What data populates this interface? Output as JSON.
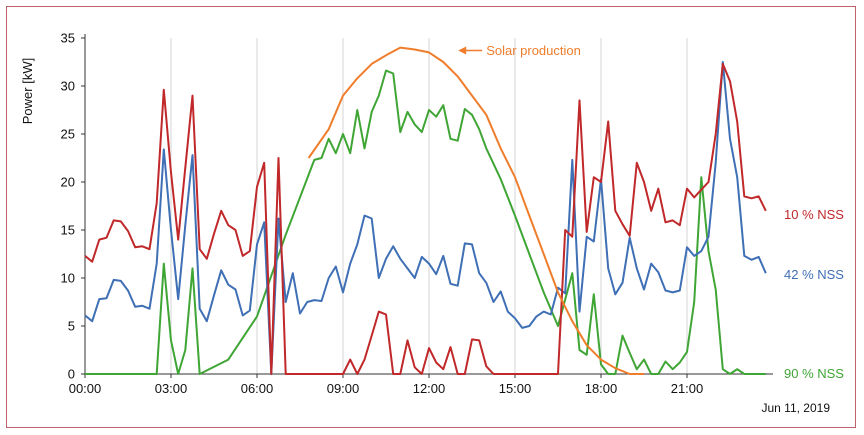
{
  "chart_data": {
    "type": "line",
    "title": "",
    "xlabel": "",
    "ylabel": "Power [kW]",
    "date_label": "Jun 11, 2019",
    "x_ticks": [
      "00:00",
      "03:00",
      "06:00",
      "09:00",
      "12:00",
      "15:00",
      "18:00",
      "21:00"
    ],
    "x_range_hours": [
      0,
      24
    ],
    "y_ticks": [
      0,
      5,
      10,
      15,
      20,
      25,
      30,
      35
    ],
    "ylim": [
      0,
      35
    ],
    "grid": "vertical lines at x ticks",
    "x_unit": "hour of day",
    "series": [
      {
        "name": "Solar production",
        "color": "#ef7d2b",
        "annotation": "Solar production",
        "x": [
          7.8,
          8.5,
          9.0,
          9.5,
          10.0,
          10.5,
          11.0,
          11.5,
          12.0,
          12.5,
          13.0,
          13.5,
          14.0,
          14.5,
          15.0,
          15.5,
          16.0,
          16.5,
          17.0,
          17.5,
          18.0,
          18.5,
          19.0,
          19.5
        ],
        "values": [
          22.5,
          25.5,
          29.0,
          30.8,
          32.3,
          33.2,
          34.0,
          33.8,
          33.5,
          32.5,
          31.0,
          29.0,
          27.0,
          23.5,
          20.5,
          16.5,
          12.5,
          8.5,
          5.5,
          3.0,
          1.5,
          0.6,
          0.0,
          0.0
        ]
      },
      {
        "name": "10 % NSS",
        "color": "#c0282a",
        "x": [
          0.0,
          0.25,
          0.5,
          0.75,
          1.0,
          1.25,
          1.5,
          1.75,
          2.0,
          2.25,
          2.5,
          2.75,
          3.0,
          3.25,
          3.5,
          3.75,
          4.0,
          4.25,
          4.5,
          4.75,
          5.0,
          5.25,
          5.5,
          5.75,
          6.0,
          6.25,
          6.5,
          6.75,
          7.0,
          7.25,
          7.5,
          7.75,
          8.0,
          8.25,
          8.5,
          8.75,
          9.0,
          9.25,
          9.5,
          9.75,
          10.0,
          10.25,
          10.5,
          10.75,
          11.0,
          11.25,
          11.5,
          11.75,
          12.0,
          12.25,
          12.5,
          12.75,
          13.0,
          13.25,
          13.5,
          13.75,
          14.0,
          14.25,
          14.5,
          14.75,
          15.0,
          15.25,
          15.5,
          15.75,
          16.0,
          16.25,
          16.5,
          16.75,
          17.0,
          17.25,
          17.5,
          17.75,
          18.0,
          18.25,
          18.5,
          18.75,
          19.0,
          19.25,
          19.5,
          19.75,
          20.0,
          20.25,
          20.5,
          20.75,
          21.0,
          21.25,
          21.5,
          21.75,
          22.0,
          22.25,
          22.5,
          22.75,
          23.0,
          23.25,
          23.5,
          23.75
        ],
        "values": [
          12.3,
          11.7,
          14.0,
          14.2,
          16.0,
          15.9,
          14.9,
          13.2,
          13.3,
          13.0,
          17.8,
          29.6,
          21.0,
          14.0,
          21.5,
          29.0,
          13.0,
          12.0,
          14.6,
          17.0,
          15.5,
          15.0,
          12.3,
          12.8,
          19.5,
          22.0,
          0.0,
          22.5,
          0.0,
          0.0,
          0.0,
          0.0,
          0.0,
          0.0,
          0.0,
          0.0,
          0.0,
          1.5,
          0.0,
          1.5,
          4.0,
          6.5,
          6.2,
          0.0,
          0.0,
          3.5,
          0.7,
          0.0,
          2.7,
          1.2,
          0.5,
          2.8,
          0.0,
          0.0,
          3.6,
          3.5,
          0.8,
          0.0,
          0.0,
          0.0,
          0.0,
          0.0,
          0.0,
          0.0,
          0.0,
          0.0,
          0.0,
          15.0,
          14.3,
          28.5,
          14.8,
          20.5,
          20.0,
          26.3,
          17.0,
          15.6,
          14.4,
          22.0,
          20.0,
          17.0,
          19.3,
          15.8,
          16.0,
          15.5,
          19.3,
          18.4,
          19.2,
          20.0,
          25.0,
          32.3,
          30.5,
          26.3,
          18.5,
          18.3,
          18.5,
          17.0
        ]
      },
      {
        "name": "42 % NSS",
        "color": "#3f6fb5",
        "x": [
          0.0,
          0.25,
          0.5,
          0.75,
          1.0,
          1.25,
          1.5,
          1.75,
          2.0,
          2.25,
          2.5,
          2.75,
          3.0,
          3.25,
          3.5,
          3.75,
          4.0,
          4.25,
          4.5,
          4.75,
          5.0,
          5.25,
          5.5,
          5.75,
          6.0,
          6.25,
          6.5,
          6.75,
          7.0,
          7.25,
          7.5,
          7.75,
          8.0,
          8.25,
          8.5,
          8.75,
          9.0,
          9.25,
          9.5,
          9.75,
          10.0,
          10.25,
          10.5,
          10.75,
          11.0,
          11.25,
          11.5,
          11.75,
          12.0,
          12.25,
          12.5,
          12.75,
          13.0,
          13.25,
          13.5,
          13.75,
          14.0,
          14.25,
          14.5,
          14.75,
          15.0,
          15.25,
          15.5,
          15.75,
          16.0,
          16.25,
          16.5,
          16.75,
          17.0,
          17.25,
          17.5,
          17.75,
          18.0,
          18.25,
          18.5,
          18.75,
          19.0,
          19.25,
          19.5,
          19.75,
          20.0,
          20.25,
          20.5,
          20.75,
          21.0,
          21.25,
          21.5,
          21.75,
          22.0,
          22.25,
          22.5,
          22.75,
          23.0,
          23.25,
          23.5,
          23.75
        ],
        "values": [
          6.1,
          5.5,
          7.8,
          7.9,
          9.8,
          9.7,
          8.7,
          7.0,
          7.1,
          6.8,
          11.5,
          23.4,
          15.0,
          7.8,
          15.5,
          22.8,
          6.8,
          5.5,
          8.2,
          10.8,
          9.3,
          8.8,
          6.1,
          6.6,
          13.5,
          15.8,
          0.0,
          16.2,
          7.5,
          10.5,
          6.3,
          7.5,
          7.7,
          7.6,
          10.0,
          11.2,
          8.5,
          11.5,
          13.5,
          16.5,
          16.2,
          10.0,
          12.0,
          13.3,
          12.0,
          11.0,
          10.0,
          12.2,
          11.5,
          10.4,
          12.3,
          9.4,
          9.2,
          13.6,
          13.5,
          10.5,
          9.5,
          7.5,
          8.6,
          6.5,
          5.8,
          4.8,
          5.0,
          6.0,
          6.5,
          6.2,
          9.0,
          8.4,
          22.3,
          6.5,
          14.3,
          13.8,
          20.3,
          11.0,
          8.3,
          9.5,
          14.2,
          11.0,
          8.8,
          11.5,
          10.6,
          8.7,
          8.5,
          8.7,
          13.2,
          12.3,
          12.8,
          14.3,
          22.0,
          32.5,
          24.5,
          20.5,
          12.3,
          11.9,
          12.2,
          10.5
        ]
      },
      {
        "name": "90 % NSS",
        "color": "#3fa535",
        "x": [
          0.0,
          0.5,
          1.0,
          1.5,
          2.0,
          2.5,
          2.75,
          3.0,
          3.25,
          3.5,
          3.75,
          4.0,
          5.0,
          6.0,
          7.0,
          8.0,
          8.25,
          8.5,
          8.75,
          9.0,
          9.25,
          9.5,
          9.75,
          10.0,
          10.25,
          10.5,
          10.75,
          11.0,
          11.25,
          11.5,
          11.75,
          12.0,
          12.25,
          12.5,
          12.75,
          13.0,
          13.25,
          13.5,
          13.75,
          14.0,
          14.5,
          15.0,
          15.5,
          16.0,
          16.5,
          17.0,
          17.25,
          17.5,
          17.75,
          18.0,
          18.25,
          18.5,
          18.75,
          19.0,
          19.25,
          19.5,
          19.75,
          20.0,
          20.25,
          20.5,
          20.75,
          21.0,
          21.25,
          21.5,
          21.75,
          22.0,
          22.25,
          22.5,
          22.75,
          23.0,
          23.25,
          23.5,
          23.75
        ],
        "values": [
          0.0,
          0.0,
          0.0,
          0.0,
          0.0,
          0.0,
          11.5,
          3.5,
          0.0,
          2.5,
          11.0,
          0.0,
          1.5,
          6.0,
          14.5,
          22.3,
          22.5,
          24.5,
          23.0,
          25.0,
          23.0,
          27.5,
          23.5,
          27.3,
          29.0,
          31.6,
          31.3,
          25.2,
          27.3,
          26.0,
          25.2,
          27.5,
          26.8,
          28.0,
          24.5,
          24.3,
          27.6,
          27.0,
          25.5,
          23.5,
          20.3,
          16.5,
          12.5,
          8.5,
          5.0,
          10.5,
          2.5,
          2.0,
          8.3,
          1.0,
          0.0,
          0.0,
          4.0,
          2.2,
          0.5,
          1.5,
          0.0,
          0.0,
          1.3,
          0.5,
          1.2,
          2.3,
          7.5,
          20.5,
          12.8,
          8.8,
          0.5,
          0.0,
          0.5,
          0.0,
          0.0,
          0.0,
          0.0
        ]
      }
    ]
  }
}
